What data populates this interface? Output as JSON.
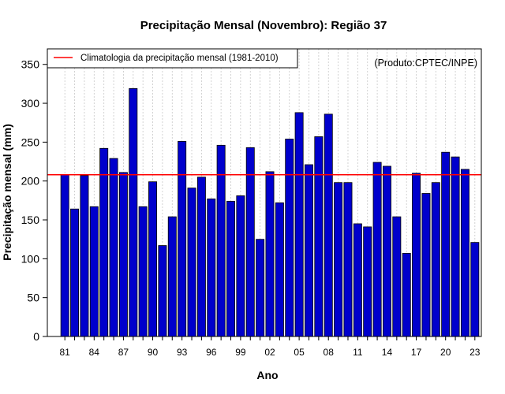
{
  "chart_data": {
    "type": "bar",
    "title": "Precipitação Mensal (Novembro): Região 37",
    "xlabel": "Ano",
    "ylabel": "Precipitação mensal (mm)",
    "ylim": [
      0,
      370
    ],
    "yticks": [
      0,
      50,
      100,
      150,
      200,
      250,
      300,
      350
    ],
    "grid": true,
    "source_note": "(Produto:CPTEC/INPE)",
    "legend": {
      "label": "Climatologia da precipitação mensal (1981-2010)",
      "position": "top-left"
    },
    "climatology": 208,
    "colors": {
      "bar": "#0000cc",
      "climatology": "#ff0000",
      "grid": "#c8c8c8",
      "note": "#6e6e6e"
    },
    "xtick_labels": [
      "81",
      "84",
      "87",
      "90",
      "93",
      "96",
      "99",
      "02",
      "05",
      "08",
      "11",
      "14",
      "17",
      "20",
      "23"
    ],
    "categories": [
      "1981",
      "1982",
      "1983",
      "1984",
      "1985",
      "1986",
      "1987",
      "1988",
      "1989",
      "1990",
      "1991",
      "1992",
      "1993",
      "1994",
      "1995",
      "1996",
      "1997",
      "1998",
      "1999",
      "2000",
      "2001",
      "2002",
      "2003",
      "2004",
      "2005",
      "2006",
      "2007",
      "2008",
      "2009",
      "2010",
      "2011",
      "2012",
      "2013",
      "2014",
      "2015",
      "2016",
      "2017",
      "2018",
      "2019",
      "2020",
      "2021",
      "2022",
      "2023"
    ],
    "values": [
      208,
      164,
      207,
      167,
      242,
      229,
      211,
      319,
      167,
      199,
      117,
      154,
      251,
      191,
      205,
      177,
      246,
      174,
      181,
      243,
      125,
      212,
      172,
      254,
      288,
      221,
      257,
      286,
      198,
      198,
      145,
      141,
      224,
      219,
      154,
      107,
      210,
      184,
      198,
      237,
      231,
      215,
      121
    ]
  }
}
